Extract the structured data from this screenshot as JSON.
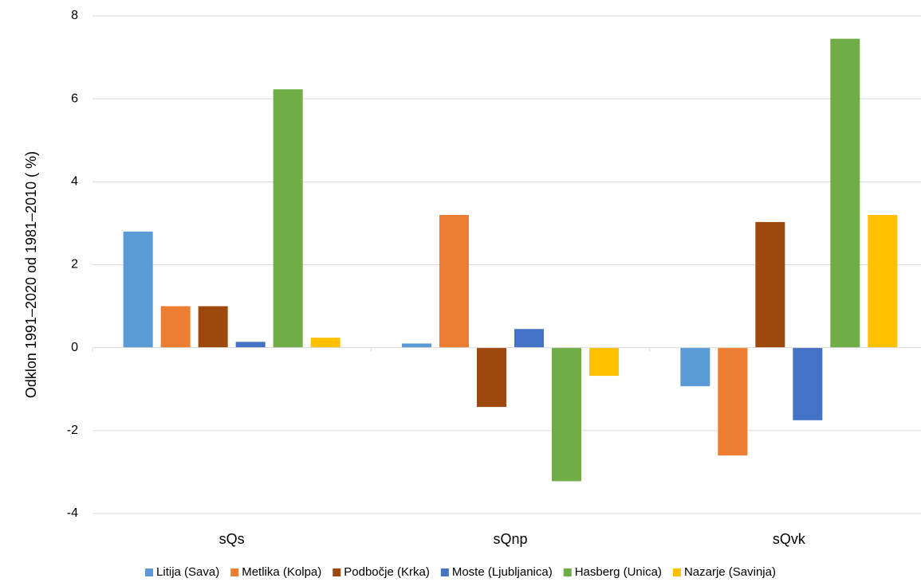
{
  "chart_data": {
    "type": "bar",
    "title": "",
    "xlabel": "",
    "ylabel": "Odklon 1991–2020 od 1981–2010 ( %)",
    "ylim": [
      -4,
      8
    ],
    "yticks": [
      -4,
      -2,
      0,
      2,
      4,
      6,
      8
    ],
    "grid": true,
    "legend_position": "bottom",
    "categories": [
      "sQs",
      "sQnp",
      "sQvk"
    ],
    "series": [
      {
        "name": "Litija (Sava)",
        "color": "#5B9BD5",
        "values": [
          2.8,
          0.1,
          -0.93
        ]
      },
      {
        "name": "Metlika (Kolpa)",
        "color": "#ED7D31",
        "values": [
          1.0,
          3.2,
          -2.6
        ]
      },
      {
        "name": "Podbočje (Krka)",
        "color": "#9E480E",
        "values": [
          1.0,
          -1.43,
          3.03
        ]
      },
      {
        "name": "Moste (Ljubljanica)",
        "color": "#4472C4",
        "values": [
          0.14,
          0.45,
          -1.75
        ]
      },
      {
        "name": "Hasberg (Unica)",
        "color": "#70AD47",
        "values": [
          6.23,
          -3.22,
          7.45
        ]
      },
      {
        "name": "Nazarje (Savinja)",
        "color": "#FFC000",
        "values": [
          0.24,
          -0.68,
          3.2
        ]
      }
    ]
  }
}
